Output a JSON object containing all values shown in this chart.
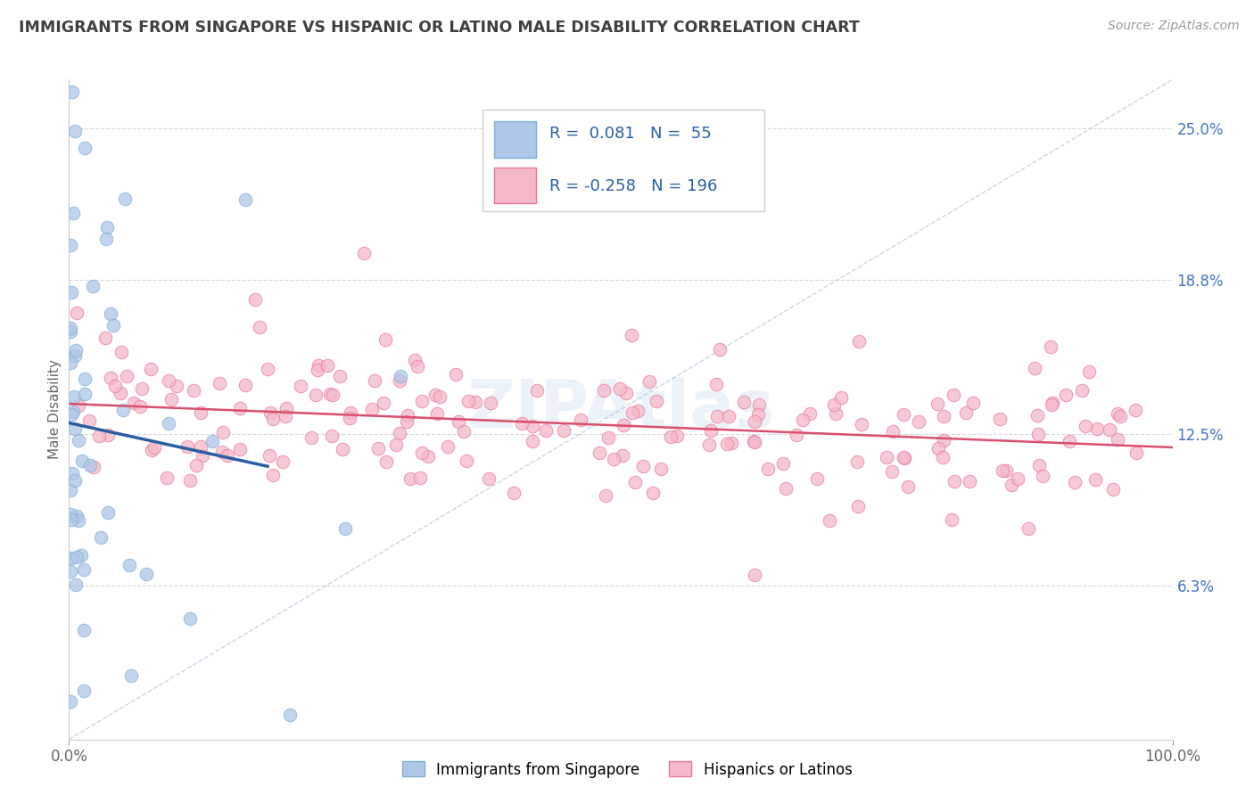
{
  "title": "IMMIGRANTS FROM SINGAPORE VS HISPANIC OR LATINO MALE DISABILITY CORRELATION CHART",
  "source_text": "Source: ZipAtlas.com",
  "ylabel": "Male Disability",
  "watermark": "ZIPAtlas",
  "y_tick_positions_pct": [
    25.0,
    18.8,
    12.5,
    6.3
  ],
  "blue_R": 0.081,
  "blue_N": 55,
  "pink_R": -0.258,
  "pink_N": 196,
  "legend_label_blue": "Immigrants from Singapore",
  "legend_label_pink": "Hispanics or Latinos",
  "blue_color": "#aec6e8",
  "pink_color": "#f5b8c8",
  "blue_edge": "#7bafd4",
  "pink_edge": "#e87a96",
  "blue_trend_color": "#2a5fa5",
  "pink_trend_color": "#d94f6e",
  "diagonal_color": "#aac4e0",
  "background_color": "#ffffff",
  "grid_color": "#e0e0e0",
  "title_color": "#404040",
  "xlim": [
    0,
    1
  ],
  "ylim": [
    0,
    0.27
  ]
}
